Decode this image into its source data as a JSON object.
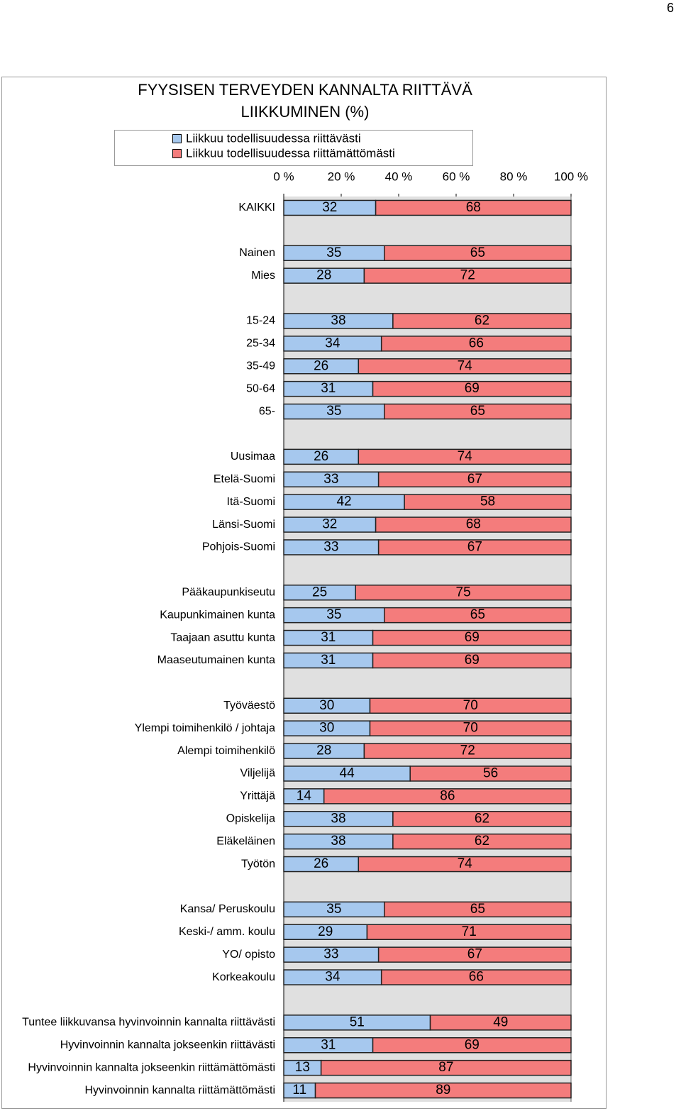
{
  "page_number": "6",
  "chart_data": {
    "type": "stacked_barh",
    "title": [
      "FYYSISEN TERVEYDEN KANNALTA RIITTÄVÄ",
      "LIIKKUMINEN (%)"
    ],
    "categories": [
      "KAIKKI",
      null,
      "Nainen",
      "Mies",
      null,
      "15-24",
      "25-34",
      "35-49",
      "50-64",
      "65-",
      null,
      "Uusimaa",
      "Etelä-Suomi",
      "Itä-Suomi",
      "Länsi-Suomi",
      "Pohjois-Suomi",
      null,
      "Pääkaupunkiseutu",
      "Kaupunkimainen kunta",
      "Taajaan asuttu kunta",
      "Maaseutumainen kunta",
      null,
      "Työväestö",
      "Ylempi toimihenkilö / johtaja",
      "Alempi toimihenkilö",
      "Viljelijä",
      "Yrittäjä",
      "Opiskelija",
      "Eläkeläinen",
      "Työtön",
      null,
      "Kansa/ Peruskoulu",
      "Keski-/ amm. koulu",
      "YO/ opisto",
      "Korkeakoulu",
      null,
      "Tuntee liikkuvansa hyvinvoinnin kannalta riittävästi",
      "Hyvinvoinnin kannalta jokseenkin riittävästi",
      "Hyvinvoinnin kannalta jokseenkin riittämättömästi",
      "Hyvinvoinnin kannalta riittämättömästi"
    ],
    "series": [
      {
        "name": "Liikkuu todellisuudessa riittävästi",
        "color": "#a6c8ee",
        "values": [
          32,
          null,
          35,
          28,
          null,
          38,
          34,
          26,
          31,
          35,
          null,
          26,
          33,
          42,
          32,
          33,
          null,
          25,
          35,
          31,
          31,
          null,
          30,
          30,
          28,
          44,
          14,
          38,
          38,
          26,
          null,
          35,
          29,
          33,
          34,
          null,
          51,
          31,
          13,
          11
        ]
      },
      {
        "name": "Liikkuu todellisuudessa riittämättömästi",
        "color": "#f47c7c",
        "values": [
          68,
          null,
          65,
          72,
          null,
          62,
          66,
          74,
          69,
          65,
          null,
          74,
          67,
          58,
          68,
          67,
          null,
          75,
          65,
          69,
          69,
          null,
          70,
          70,
          72,
          56,
          86,
          62,
          62,
          74,
          null,
          65,
          71,
          67,
          66,
          null,
          49,
          69,
          87,
          89
        ]
      }
    ],
    "xlim": [
      0,
      100
    ],
    "xticks": [
      {
        "value": 0,
        "label": "0 %"
      },
      {
        "value": 20,
        "label": "20 %"
      },
      {
        "value": 40,
        "label": "40 %"
      },
      {
        "value": 60,
        "label": "60 %"
      },
      {
        "value": 80,
        "label": "80 %"
      },
      {
        "value": 100,
        "label": "100 %"
      }
    ],
    "grid": false,
    "plot_background": "#e0e0e0"
  }
}
